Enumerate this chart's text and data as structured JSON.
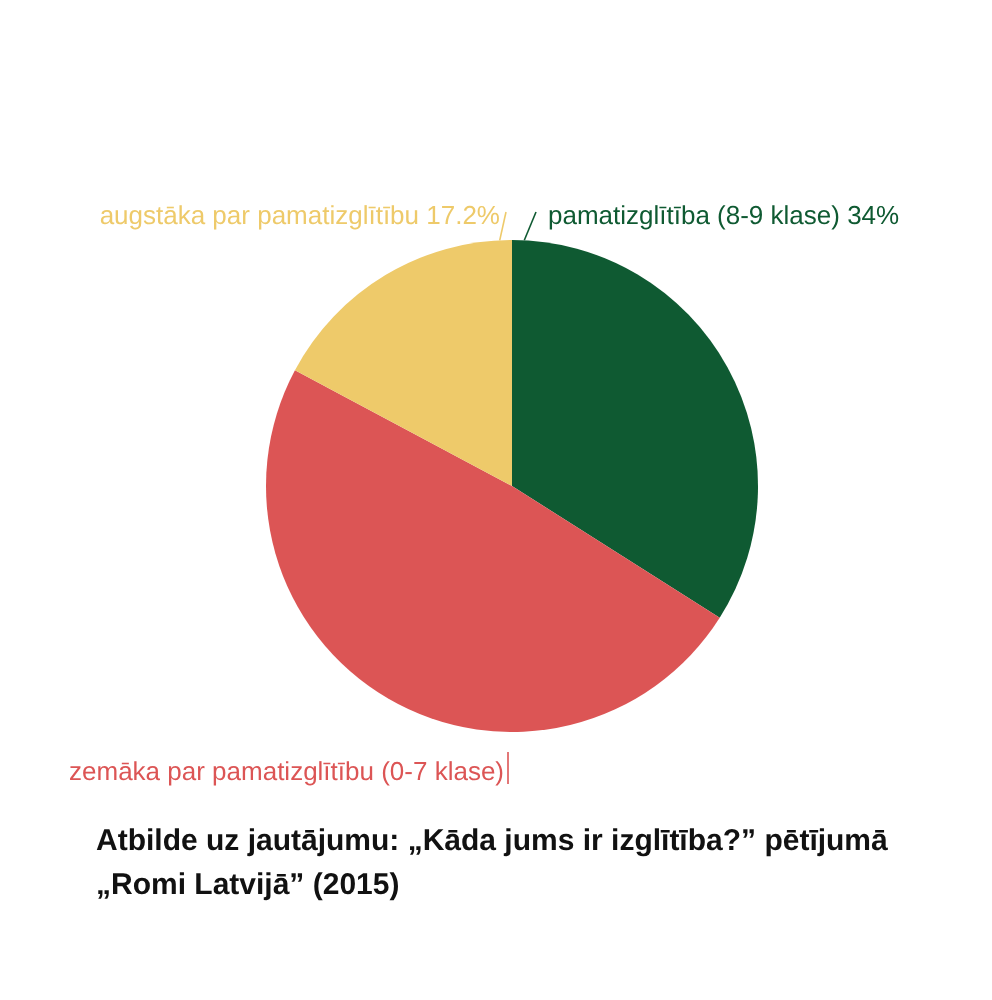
{
  "chart_data": {
    "type": "pie",
    "title": "Atbilde uz jautājumu: „Kāda jums ir izglītība?” pētījumā\n„Romi Latvijā” (2015)",
    "categories": [
      "pamatizglītība (8-9 klase)",
      "zemāka par pamatizglītību (0-7 klase)",
      "augstāka par pamatizglītību"
    ],
    "values": [
      34,
      48.8,
      17.2
    ],
    "value_labels": [
      "34%",
      null,
      "17.2%"
    ],
    "colors": [
      "#0f5a32",
      "#dc5555",
      "#eeca6a"
    ],
    "legend": false
  }
}
